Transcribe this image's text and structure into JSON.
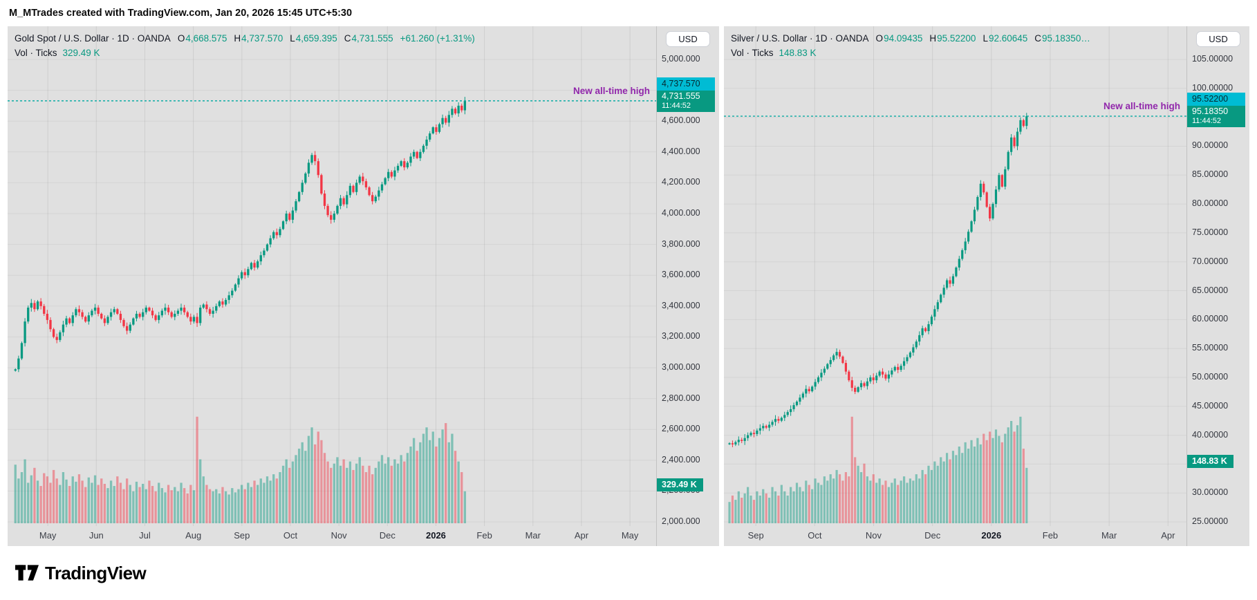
{
  "attribution": "M_MTrades created with TradingView.com, Jan 20, 2026 15:45 UTC+5:30",
  "footer": {
    "brand": "TradingView"
  },
  "panels": [
    {
      "legend": {
        "title": "Gold Spot / U.S. Dollar · 1D · OANDA",
        "ohlc": [
          {
            "key": "O",
            "value": "4,668.575"
          },
          {
            "key": "H",
            "value": "4,737.570"
          },
          {
            "key": "L",
            "value": "4,659.395"
          },
          {
            "key": "C",
            "value": "4,731.555"
          }
        ],
        "change": "+61.260 (+1.31%)",
        "vol_label": "Vol · Ticks",
        "vol_value": "329.49 K"
      },
      "axis_button": "USD",
      "annotation": "New all-time high",
      "labels": {
        "high": "4,737.570",
        "close": "4,731.555",
        "countdown": "11:44:52",
        "volume": "329.49 K"
      }
    },
    {
      "legend": {
        "title": "Silver / U.S. Dollar · 1D · OANDA",
        "ohlc": [
          {
            "key": "O",
            "value": "94.09435"
          },
          {
            "key": "H",
            "value": "95.52200"
          },
          {
            "key": "L",
            "value": "92.60645"
          },
          {
            "key": "C",
            "value": "95.18350…"
          }
        ],
        "change": "",
        "vol_label": "Vol · Ticks",
        "vol_value": "148.83 K"
      },
      "axis_button": "USD",
      "annotation": "New all-time high",
      "labels": {
        "high": "95.52200",
        "close": "95.18350",
        "countdown": "11:44:52",
        "volume": "148.83 K"
      }
    }
  ],
  "chart_data": [
    {
      "type": "candlestick",
      "title": "Gold Spot / U.S. Dollar, 1D, OANDA",
      "last_bar": {
        "open": 4668.575,
        "high": 4737.57,
        "low": 4659.395,
        "close": 4731.555,
        "change": 61.26,
        "change_pct": 1.31
      },
      "volume_ticks": "329.49 K",
      "ylim": [
        2000,
        5000
      ],
      "y_ticks": [
        "5,000.000",
        "4,800.000",
        "4,600.000",
        "4,400.000",
        "4,200.000",
        "4,000.000",
        "3,800.000",
        "3,600.000",
        "3,400.000",
        "3,200.000",
        "3,000.000",
        "2,800.000",
        "2,600.000",
        "2,400.000",
        "2,200.000",
        "2,000.000"
      ],
      "x_labels": [
        "May",
        "Jun",
        "Jul",
        "Aug",
        "Sep",
        "Oct",
        "Nov",
        "Dec",
        "2026",
        "Feb",
        "Mar",
        "Apr",
        "May"
      ],
      "x_axis": {
        "first": 0.062,
        "step": 0.0748
      },
      "data_end_frac": 0.71,
      "close_line": 4731.555,
      "high_line": 4737.57,
      "grid": true,
      "closes": [
        2990,
        3060,
        3160,
        3300,
        3390,
        3420,
        3380,
        3430,
        3400,
        3350,
        3310,
        3250,
        3200,
        3180,
        3230,
        3280,
        3320,
        3290,
        3340,
        3380,
        3360,
        3330,
        3300,
        3340,
        3370,
        3390,
        3350,
        3320,
        3290,
        3330,
        3360,
        3380,
        3350,
        3310,
        3270,
        3240,
        3280,
        3320,
        3350,
        3330,
        3360,
        3390,
        3370,
        3340,
        3310,
        3340,
        3370,
        3390,
        3360,
        3330,
        3350,
        3370,
        3390,
        3360,
        3330,
        3300,
        3330,
        3290,
        3390,
        3410,
        3380,
        3350,
        3370,
        3400,
        3430,
        3410,
        3440,
        3470,
        3500,
        3540,
        3580,
        3620,
        3600,
        3640,
        3680,
        3650,
        3690,
        3730,
        3760,
        3800,
        3840,
        3880,
        3860,
        3900,
        3950,
        4000,
        3960,
        4020,
        4080,
        4140,
        4200,
        4260,
        4330,
        4380,
        4340,
        4250,
        4130,
        4050,
        3990,
        3960,
        4000,
        4050,
        4100,
        4060,
        4120,
        4180,
        4140,
        4200,
        4240,
        4210,
        4170,
        4120,
        4080,
        4110,
        4150,
        4190,
        4230,
        4270,
        4240,
        4280,
        4310,
        4340,
        4300,
        4330,
        4370,
        4400,
        4360,
        4400,
        4440,
        4480,
        4520,
        4560,
        4530,
        4580,
        4620,
        4590,
        4640,
        4680,
        4650,
        4700,
        4670,
        4731.555
      ],
      "volumes": [
        55,
        42,
        48,
        60,
        38,
        45,
        52,
        40,
        35,
        47,
        44,
        38,
        50,
        42,
        36,
        48,
        41,
        35,
        44,
        39,
        46,
        40,
        34,
        43,
        38,
        45,
        36,
        42,
        37,
        33,
        40,
        35,
        44,
        38,
        32,
        42,
        36,
        30,
        39,
        34,
        37,
        32,
        40,
        35,
        30,
        38,
        33,
        29,
        36,
        31,
        34,
        30,
        38,
        33,
        28,
        36,
        31,
        100,
        60,
        44,
        36,
        32,
        30,
        32,
        28,
        34,
        30,
        27,
        33,
        29,
        32,
        36,
        32,
        38,
        34,
        40,
        36,
        42,
        38,
        44,
        40,
        46,
        42,
        48,
        54,
        60,
        52,
        58,
        64,
        70,
        76,
        68,
        82,
        90,
        74,
        86,
        78,
        66,
        58,
        52,
        56,
        62,
        54,
        60,
        52,
        58,
        50,
        56,
        62,
        54,
        48,
        54,
        46,
        52,
        58,
        64,
        56,
        62,
        54,
        60,
        56,
        64,
        58,
        66,
        72,
        80,
        68,
        76,
        84,
        90,
        78,
        86,
        72,
        80,
        88,
        94,
        76,
        84,
        68,
        58,
        48,
        30
      ],
      "colors": {
        "up": "#089981",
        "down": "#f23645",
        "vol_up": "rgba(8,153,129,0.45)",
        "vol_down": "rgba(242,54,69,0.45)",
        "line": "#0aaca4"
      }
    },
    {
      "type": "candlestick",
      "title": "Silver / U.S. Dollar, 1D, OANDA",
      "last_bar": {
        "open": 94.09435,
        "high": 95.522,
        "low": 92.60645,
        "close": 95.1835
      },
      "volume_ticks": "148.83 K",
      "ylim": [
        25,
        105
      ],
      "y_ticks": [
        "105.00000",
        "100.00000",
        "95.00000",
        "90.00000",
        "85.00000",
        "80.00000",
        "75.00000",
        "70.00000",
        "65.00000",
        "60.00000",
        "55.00000",
        "50.00000",
        "45.00000",
        "40.00000",
        "35.00000",
        "30.00000",
        "25.00000"
      ],
      "x_labels": [
        "Sep",
        "Oct",
        "Nov",
        "Dec",
        "2026",
        "Feb",
        "Mar",
        "Apr"
      ],
      "x_axis": {
        "first": 0.069,
        "step": 0.1273
      },
      "data_end_frac": 0.661,
      "close_line": 95.1835,
      "high_line": 95.522,
      "grid": true,
      "closes": [
        38.6,
        38.4,
        38.8,
        39.2,
        39.0,
        39.5,
        40.0,
        40.4,
        40.2,
        40.8,
        41.2,
        41.6,
        41.3,
        41.8,
        42.3,
        42.8,
        42.5,
        43.0,
        43.5,
        44.0,
        44.5,
        45.2,
        45.8,
        46.5,
        47.2,
        48.0,
        47.6,
        48.4,
        49.2,
        50.0,
        50.8,
        51.5,
        52.3,
        53.0,
        53.8,
        54.4,
        53.6,
        52.5,
        51.0,
        49.5,
        48.2,
        47.5,
        48.3,
        49.0,
        48.5,
        49.3,
        50.0,
        49.5,
        50.3,
        51.0,
        50.5,
        49.8,
        50.5,
        51.2,
        51.8,
        51.3,
        52.0,
        52.8,
        53.5,
        54.3,
        55.2,
        56.2,
        57.3,
        58.5,
        58.0,
        59.2,
        60.5,
        61.8,
        63.0,
        64.3,
        65.5,
        66.8,
        66.2,
        67.5,
        69.0,
        70.5,
        72.0,
        73.5,
        75.2,
        77.0,
        79.0,
        81.2,
        83.5,
        82.0,
        79.5,
        77.5,
        80.0,
        82.5,
        85.0,
        83.0,
        86.0,
        89.0,
        91.5,
        90.0,
        92.5,
        94.5,
        93.5,
        95.1835
      ],
      "volumes": [
        20,
        26,
        22,
        30,
        24,
        28,
        34,
        26,
        22,
        30,
        26,
        32,
        28,
        24,
        34,
        30,
        26,
        36,
        30,
        26,
        34,
        30,
        38,
        34,
        30,
        40,
        36,
        32,
        42,
        38,
        36,
        44,
        40,
        46,
        42,
        50,
        46,
        40,
        48,
        44,
        100,
        62,
        54,
        48,
        56,
        44,
        40,
        46,
        38,
        42,
        36,
        40,
        34,
        38,
        42,
        36,
        40,
        44,
        38,
        42,
        40,
        46,
        42,
        50,
        46,
        54,
        50,
        58,
        54,
        62,
        58,
        66,
        60,
        68,
        64,
        72,
        66,
        76,
        70,
        78,
        72,
        80,
        74,
        84,
        78,
        86,
        80,
        88,
        82,
        76,
        84,
        90,
        96,
        86,
        92,
        100,
        70,
        52
      ],
      "colors": {
        "up": "#089981",
        "down": "#f23645",
        "vol_up": "rgba(8,153,129,0.45)",
        "vol_down": "rgba(242,54,69,0.45)",
        "line": "#0aaca4"
      }
    }
  ]
}
